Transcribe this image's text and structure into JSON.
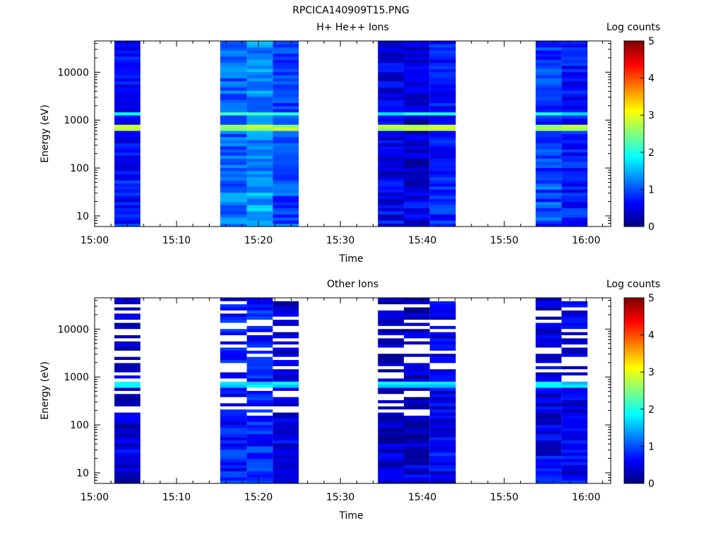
{
  "page_title": "RPCICA140909T15.PNG",
  "colorbar": {
    "label": "Log counts",
    "range": [
      0,
      5
    ],
    "ticks": [
      "0",
      "1",
      "2",
      "3",
      "4",
      "5"
    ],
    "colormap": "jet"
  },
  "chart_data": [
    {
      "type": "heatmap",
      "title": "H+ He++ Ions",
      "xlabel": "Time",
      "ylabel": "Energy (eV)",
      "x_ticks": [
        "15:00",
        "15:10",
        "15:20",
        "15:30",
        "15:40",
        "15:50",
        "16:00"
      ],
      "y_ticks": [
        "10",
        "100",
        "1000",
        "10000"
      ],
      "y_scale": "log",
      "ylim": [
        6,
        45000
      ],
      "xlim": [
        "15:00",
        "16:03"
      ],
      "value_label": "Log counts",
      "value_range": [
        0,
        5
      ],
      "blocks": [
        {
          "t_start": "15:02:25",
          "t_end": "15:05:35",
          "shade": 0.6
        },
        {
          "t_start": "15:15:20",
          "t_end": "15:18:35",
          "shade": 1.1
        },
        {
          "t_start": "15:18:35",
          "t_end": "15:21:45",
          "shade": 1.3
        },
        {
          "t_start": "15:21:45",
          "t_end": "15:24:55",
          "shade": 0.9
        },
        {
          "t_start": "15:34:35",
          "t_end": "15:37:45",
          "shade": 0.5
        },
        {
          "t_start": "15:37:45",
          "t_end": "15:40:55",
          "shade": 0.4
        },
        {
          "t_start": "15:40:55",
          "t_end": "15:44:05",
          "shade": 0.7
        },
        {
          "t_start": "15:53:50",
          "t_end": "15:57:00",
          "shade": 0.9
        },
        {
          "t_start": "15:57:00",
          "t_end": "16:00:10",
          "shade": 0.7
        }
      ],
      "peak_band_ev": [
        560,
        780
      ],
      "peak_value": 2.9,
      "secondary_band_ev": [
        1200,
        1500
      ],
      "secondary_value": 2.2
    },
    {
      "type": "heatmap",
      "title": "Other Ions",
      "xlabel": "Time",
      "ylabel": "Energy (eV)",
      "x_ticks": [
        "15:00",
        "15:10",
        "15:20",
        "15:30",
        "15:40",
        "15:50",
        "16:00"
      ],
      "y_ticks": [
        "10",
        "100",
        "1000",
        "10000"
      ],
      "y_scale": "log",
      "ylim": [
        6,
        45000
      ],
      "xlim": [
        "15:00",
        "16:03"
      ],
      "value_label": "Log counts",
      "value_range": [
        0,
        5
      ],
      "blocks": [
        {
          "t_start": "15:02:25",
          "t_end": "15:05:35",
          "shade": 0.35
        },
        {
          "t_start": "15:15:20",
          "t_end": "15:18:35",
          "shade": 0.7
        },
        {
          "t_start": "15:18:35",
          "t_end": "15:21:45",
          "shade": 0.75
        },
        {
          "t_start": "15:21:45",
          "t_end": "15:24:55",
          "shade": 0.4
        },
        {
          "t_start": "15:34:35",
          "t_end": "15:37:45",
          "shade": 0.25
        },
        {
          "t_start": "15:37:45",
          "t_end": "15:40:55",
          "shade": 0.3
        },
        {
          "t_start": "15:40:55",
          "t_end": "15:44:05",
          "shade": 0.5
        },
        {
          "t_start": "15:53:50",
          "t_end": "15:57:00",
          "shade": 0.45
        },
        {
          "t_start": "15:57:00",
          "t_end": "16:00:10",
          "shade": 0.5
        }
      ],
      "peak_band_ev": [
        560,
        780
      ],
      "peak_value": 1.9,
      "empty_fraction": 0.3
    }
  ]
}
